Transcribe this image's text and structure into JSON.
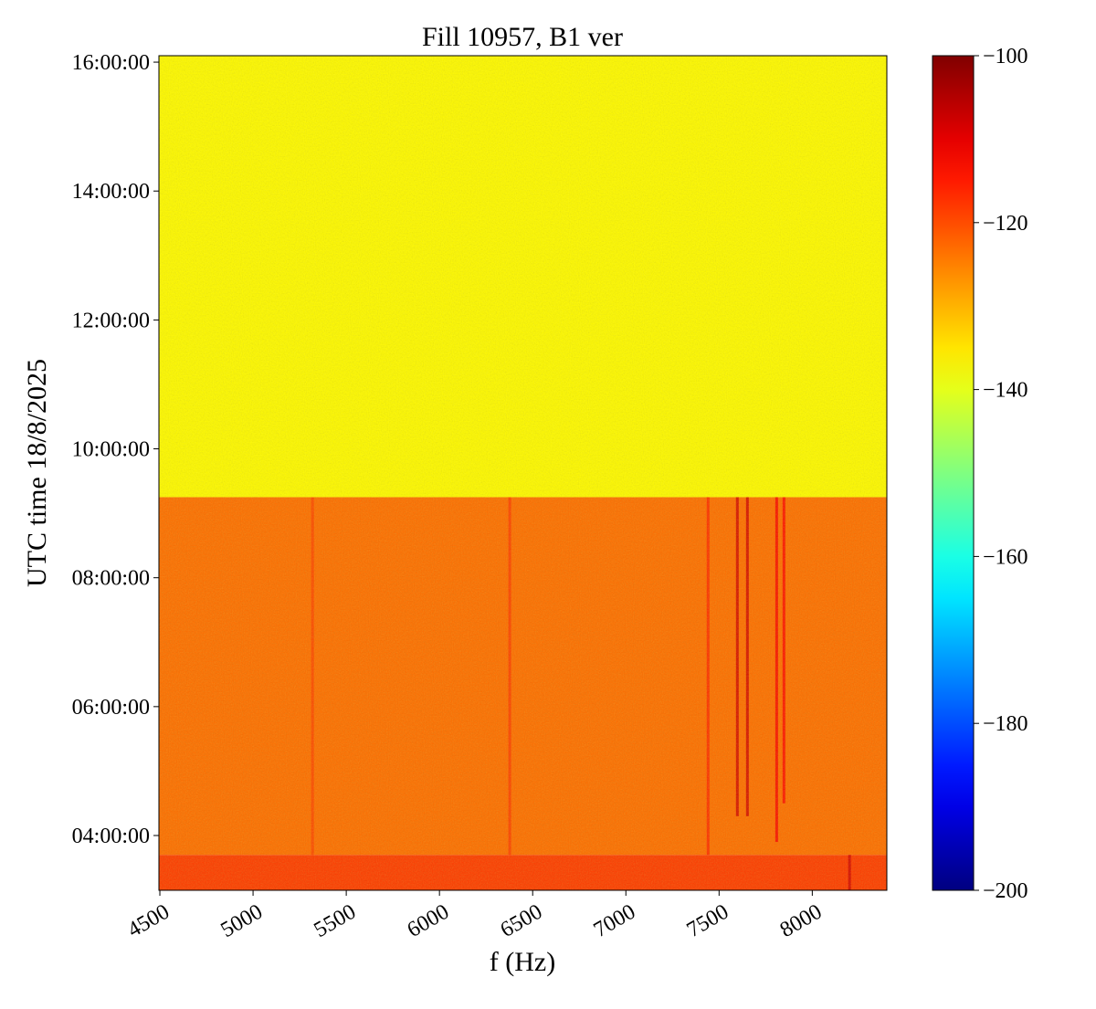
{
  "chart_data": {
    "type": "spectrogram",
    "title": "Fill 10957, B1 ver",
    "x_label": "f (Hz)",
    "y_label": "UTC time 18/8/2025",
    "xlim": [
      4495,
      8400
    ],
    "xticks": [
      4500,
      5000,
      5500,
      6000,
      6500,
      7000,
      7500,
      8000
    ],
    "ylim": [
      3.15,
      16.1
    ],
    "yticks": [
      {
        "value": 4,
        "label": "04:00:00"
      },
      {
        "value": 6,
        "label": "06:00:00"
      },
      {
        "value": 8,
        "label": "08:00:00"
      },
      {
        "value": 10,
        "label": "10:00:00"
      },
      {
        "value": 12,
        "label": "12:00:00"
      },
      {
        "value": 14,
        "label": "14:00:00"
      },
      {
        "value": 16,
        "label": "16:00:00"
      }
    ],
    "clim": [
      -200,
      -100
    ],
    "cticks": [
      {
        "value": -100,
        "label": "−100"
      },
      {
        "value": -120,
        "label": "−120"
      },
      {
        "value": -140,
        "label": "−140"
      },
      {
        "value": -160,
        "label": "−160"
      },
      {
        "value": -180,
        "label": "−180"
      },
      {
        "value": -200,
        "label": "−200"
      }
    ],
    "colormap": "jet",
    "regions": [
      {
        "start": 3.15,
        "end": 3.7,
        "level": -118
      },
      {
        "start": 3.7,
        "end": 9.25,
        "level": -123
      },
      {
        "start": 9.25,
        "end": 16.1,
        "level": -137
      }
    ],
    "lines": [
      {
        "freq": 5319,
        "start": 3.7,
        "end": 9.25,
        "level": -119
      },
      {
        "freq": 6377,
        "start": 3.7,
        "end": 9.25,
        "level": -118
      },
      {
        "freq": 7441,
        "start": 3.7,
        "end": 9.25,
        "level": -116
      },
      {
        "freq": 7598,
        "start": 4.3,
        "end": 9.25,
        "level": -108
      },
      {
        "freq": 7652,
        "start": 4.3,
        "end": 9.25,
        "level": -108
      },
      {
        "freq": 7809,
        "start": 3.9,
        "end": 9.25,
        "level": -112
      },
      {
        "freq": 7848,
        "start": 4.5,
        "end": 9.25,
        "level": -113
      },
      {
        "freq": 8200,
        "start": 3.15,
        "end": 3.7,
        "level": -108
      }
    ]
  }
}
